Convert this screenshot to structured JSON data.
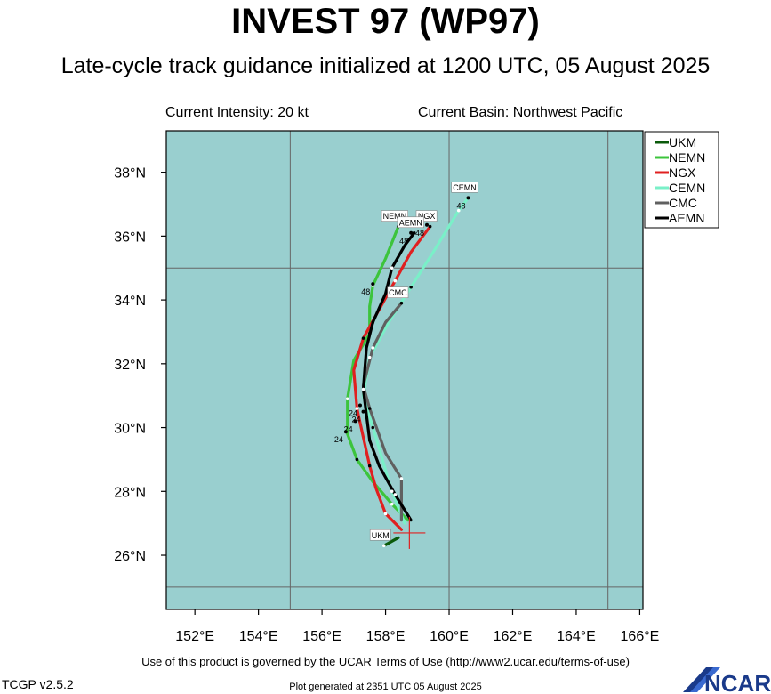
{
  "header": {
    "title": "INVEST 97 (WP97)",
    "subtitle": "Late-cycle track guidance initialized at 1200 UTC, 05 August 2025",
    "current_intensity": "Current Intensity: 20 kt",
    "current_basin": "Current Basin: Northwest Pacific"
  },
  "footer": {
    "terms": "Use of this product is governed by the UCAR Terms of Use (http://www2.ucar.edu/terms-of-use)",
    "version": "TCGP v2.5.2",
    "generated": "Plot generated at 2351 UTC   05 August 2025",
    "logo_text": "NCAR"
  },
  "colors": {
    "ocean": "#99cfcf",
    "grid": "#666666",
    "current_position_marker": "#e02020"
  },
  "chart_data": {
    "type": "line",
    "title": "INVEST 97 (WP97)",
    "x_axis": {
      "label": "",
      "range": [
        151.1,
        166.1
      ],
      "ticks": [
        152,
        154,
        156,
        158,
        160,
        162,
        164,
        166
      ],
      "tick_labels": [
        "152°E",
        "154°E",
        "156°E",
        "158°E",
        "160°E",
        "162°E",
        "164°E",
        "166°E"
      ]
    },
    "y_axis": {
      "label": "",
      "range": [
        24.3,
        39.3
      ],
      "ticks": [
        26,
        28,
        30,
        32,
        34,
        36,
        38
      ],
      "tick_labels": [
        "26°N",
        "28°N",
        "30°N",
        "32°N",
        "34°N",
        "36°N",
        "38°N"
      ]
    },
    "grid": true,
    "grid_lines_lon": [
      155,
      160,
      165
    ],
    "grid_lines_lat": [
      25,
      35
    ],
    "legend_position": "top-right",
    "current_position": {
      "lon": 158.75,
      "lat": 26.7
    },
    "series": [
      {
        "name": "UKM",
        "color": "#0a5a0a",
        "points": [
          [
            158.4,
            26.55
          ],
          [
            157.95,
            26.3
          ]
        ],
        "end_label": "UKM",
        "end_hour": ""
      },
      {
        "name": "NEMN",
        "color": "#3cc43c",
        "points": [
          [
            158.7,
            27.1
          ],
          [
            158.2,
            27.6
          ],
          [
            157.6,
            28.3
          ],
          [
            157.1,
            29.0
          ],
          [
            156.8,
            29.8
          ],
          [
            156.8,
            30.9
          ],
          [
            157.0,
            32.1
          ],
          [
            157.5,
            32.95
          ],
          [
            157.5,
            33.8
          ],
          [
            157.6,
            34.45
          ],
          [
            158.0,
            35.3
          ],
          [
            158.4,
            36.3
          ]
        ],
        "end_label": "NEMN",
        "end_hour": "48",
        "hour_labels": [
          {
            "text": "24",
            "lon": 156.75,
            "lat": 29.87
          },
          {
            "text": "48",
            "lon": 157.6,
            "lat": 34.5
          }
        ]
      },
      {
        "name": "NGX",
        "color": "#e02020",
        "points": [
          [
            158.5,
            26.8
          ],
          [
            158.0,
            27.3
          ],
          [
            157.7,
            28.1
          ],
          [
            157.5,
            28.8
          ],
          [
            157.3,
            29.7
          ],
          [
            157.1,
            30.6
          ],
          [
            157.0,
            31.8
          ],
          [
            157.3,
            32.8
          ],
          [
            157.8,
            33.7
          ],
          [
            158.3,
            34.6
          ],
          [
            158.8,
            35.5
          ],
          [
            159.4,
            36.3
          ]
        ],
        "end_label": "NGX",
        "end_hour": "48",
        "hour_labels": [
          {
            "text": "24",
            "lon": 157.05,
            "lat": 30.2
          },
          {
            "text": "48",
            "lon": 159.3,
            "lat": 36.35
          }
        ]
      },
      {
        "name": "CEMN",
        "color": "#7af0c8",
        "points": [
          [
            158.6,
            27.0
          ],
          [
            158.2,
            28.0
          ],
          [
            157.9,
            29.0
          ],
          [
            157.6,
            30.0
          ],
          [
            157.3,
            31.0
          ],
          [
            157.5,
            32.2
          ],
          [
            158.1,
            33.3
          ],
          [
            158.8,
            34.4
          ],
          [
            159.5,
            35.5
          ],
          [
            160.3,
            36.8
          ],
          [
            160.6,
            37.2
          ]
        ],
        "end_label": "CEMN",
        "end_hour": "48",
        "hour_labels": [
          {
            "text": "48",
            "lon": 160.6,
            "lat": 37.2
          }
        ]
      },
      {
        "name": "CMC",
        "color": "#606060",
        "points": [
          [
            158.5,
            27.1
          ],
          [
            158.5,
            28.4
          ],
          [
            158.0,
            29.2
          ],
          [
            157.5,
            30.6
          ],
          [
            157.3,
            31.3
          ],
          [
            157.6,
            32.5
          ],
          [
            158.0,
            33.3
          ],
          [
            158.5,
            33.9
          ]
        ],
        "end_label": "CMC",
        "end_hour": "",
        "hour_labels": [
          {
            "text": "24",
            "lon": 157.3,
            "lat": 30.5
          }
        ]
      },
      {
        "name": "AEMN",
        "color": "#000000",
        "points": [
          [
            158.8,
            27.1
          ],
          [
            158.3,
            27.9
          ],
          [
            157.8,
            28.8
          ],
          [
            157.5,
            29.6
          ],
          [
            157.4,
            30.4
          ],
          [
            157.3,
            31.2
          ],
          [
            157.4,
            32.5
          ],
          [
            157.6,
            33.3
          ],
          [
            158.0,
            34.2
          ],
          [
            158.2,
            35.0
          ],
          [
            158.6,
            35.7
          ],
          [
            158.9,
            36.1
          ]
        ],
        "end_label": "AEMN",
        "end_hour": "48",
        "hour_labels": [
          {
            "text": "24",
            "lon": 157.2,
            "lat": 30.7
          },
          {
            "text": "48",
            "lon": 158.8,
            "lat": 36.1
          }
        ]
      }
    ]
  }
}
